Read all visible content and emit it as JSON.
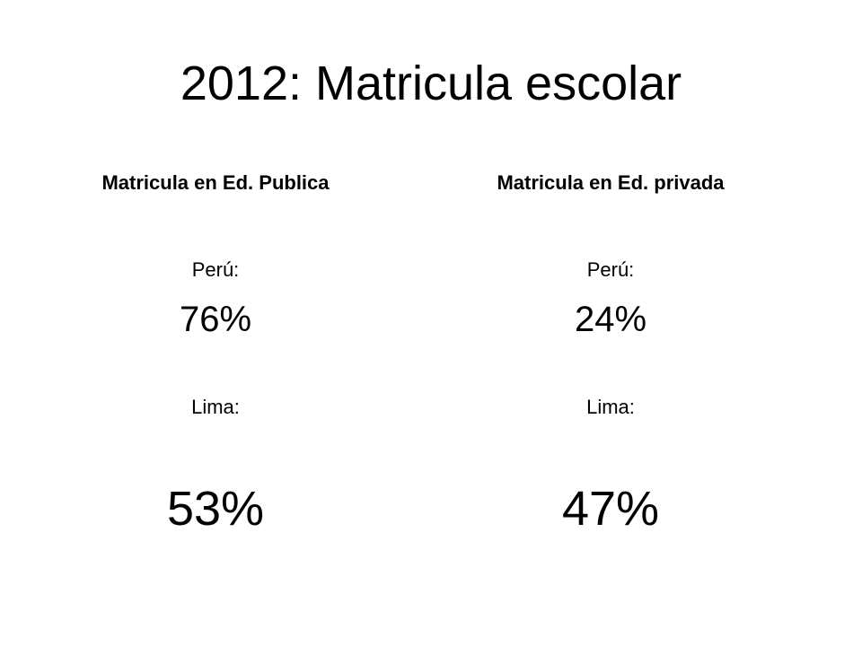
{
  "slide": {
    "title": "2012: Matricula escolar",
    "columns": [
      {
        "heading": "Matricula en Ed. Publica",
        "peru_label": "Perú:",
        "peru_value": "76%",
        "lima_label": "Lima:",
        "lima_value": "53%"
      },
      {
        "heading": "Matricula en Ed. privada",
        "peru_label": "Perú:",
        "peru_value": "24%",
        "lima_label": "Lima:",
        "lima_value": "47%"
      }
    ]
  }
}
